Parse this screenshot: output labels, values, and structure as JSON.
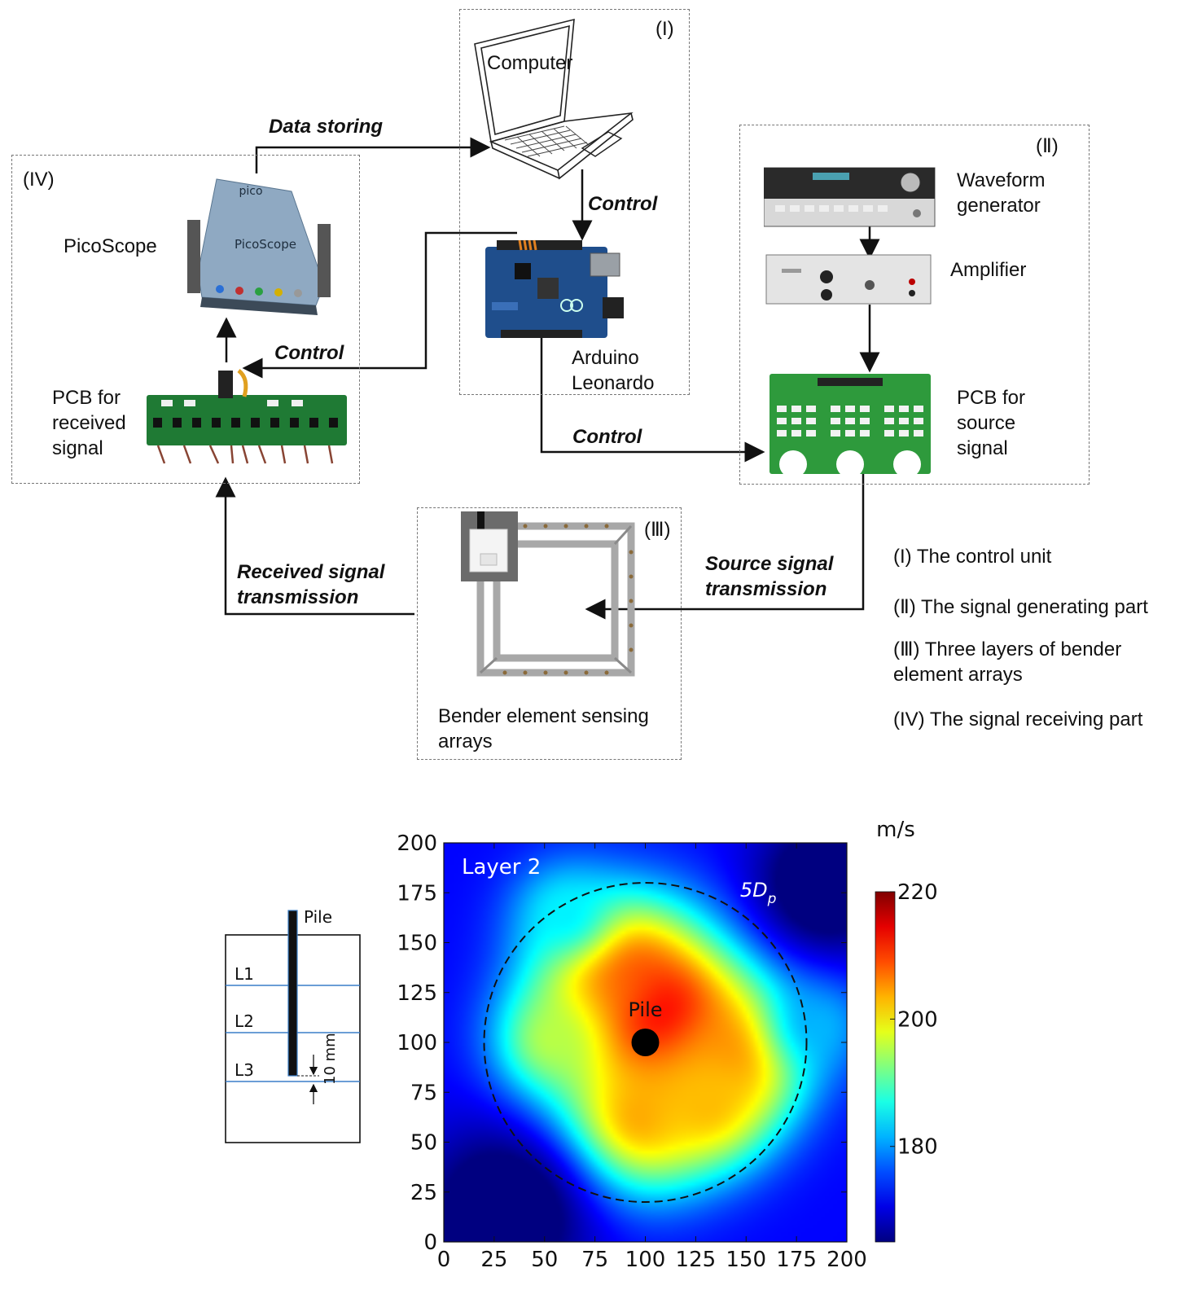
{
  "diagram": {
    "units": {
      "control": {
        "tag": "(I)",
        "computer_label": "Computer",
        "arduino_label": "Arduino\nLeonardo"
      },
      "signal_generating": {
        "tag": "(Ⅱ)",
        "waveform_label": "Waveform\ngenerator",
        "amplifier_label": "Amplifier",
        "pcb_label": "PCB for\nsource\nsignal"
      },
      "bender_arrays": {
        "tag": "(Ⅲ)",
        "label": "Bender element sensing\narrays"
      },
      "signal_receiving": {
        "tag": "(IV)",
        "picoscope_label": "PicoScope",
        "pcb_label": "PCB for\nreceived\nsignal"
      }
    },
    "arrows": {
      "data_storing": "Data storing",
      "control_computer_arduino": "Control",
      "control_arduino_pcb_received": "Control",
      "control_arduino_pcb_source": "Control",
      "source_signal_transmission": "Source signal\ntransmission",
      "received_signal_transmission": "Received signal\ntransmission"
    },
    "device_text": {
      "pico_brand": "pico",
      "picoscope_brand": "PicoScope"
    },
    "legend": [
      "(I) The control unit",
      "(Ⅱ) The signal generating part",
      "(Ⅲ) Three layers of bender\n      element arrays",
      "(IV) The signal receiving part"
    ]
  },
  "schematic": {
    "pile_label": "Pile",
    "layers": [
      "L1",
      "L2",
      "L3"
    ],
    "spacing_label": "10 mm"
  },
  "chart_data": {
    "type": "heatmap",
    "title": "Layer 2",
    "xlim": [
      0,
      200
    ],
    "ylim": [
      0,
      200
    ],
    "x_ticks": [
      "0",
      "25",
      "50",
      "75",
      "100",
      "125",
      "150",
      "175",
      "200"
    ],
    "y_ticks": [
      "0",
      "25",
      "50",
      "75",
      "100",
      "125",
      "150",
      "175",
      "200"
    ],
    "colorbar": {
      "unit": "m/s",
      "min": 165,
      "max": 220,
      "ticks": [
        "180",
        "200",
        "220"
      ],
      "colormap": "jet"
    },
    "annotations": {
      "pile_label": "Pile",
      "pile_position": [
        100,
        100
      ],
      "circle_label_main": "5D",
      "circle_label_sub": "p",
      "circle_center": [
        100,
        100
      ],
      "circle_radius": 80
    },
    "velocity_field": {
      "background": 172,
      "blobs": [
        {
          "x": 105,
          "y": 110,
          "value": 222,
          "spread": 32
        },
        {
          "x": 85,
          "y": 135,
          "value": 210,
          "spread": 25
        },
        {
          "x": 145,
          "y": 95,
          "value": 208,
          "spread": 24
        },
        {
          "x": 95,
          "y": 62,
          "value": 206,
          "spread": 26
        },
        {
          "x": 130,
          "y": 70,
          "value": 203,
          "spread": 22
        },
        {
          "x": 55,
          "y": 100,
          "value": 196,
          "spread": 20
        },
        {
          "x": 185,
          "y": 110,
          "value": 182,
          "spread": 18
        },
        {
          "x": 60,
          "y": 165,
          "value": 185,
          "spread": 18
        },
        {
          "x": 30,
          "y": 15,
          "value": 160,
          "spread": 30
        },
        {
          "x": 190,
          "y": 180,
          "value": 160,
          "spread": 25
        }
      ]
    }
  }
}
